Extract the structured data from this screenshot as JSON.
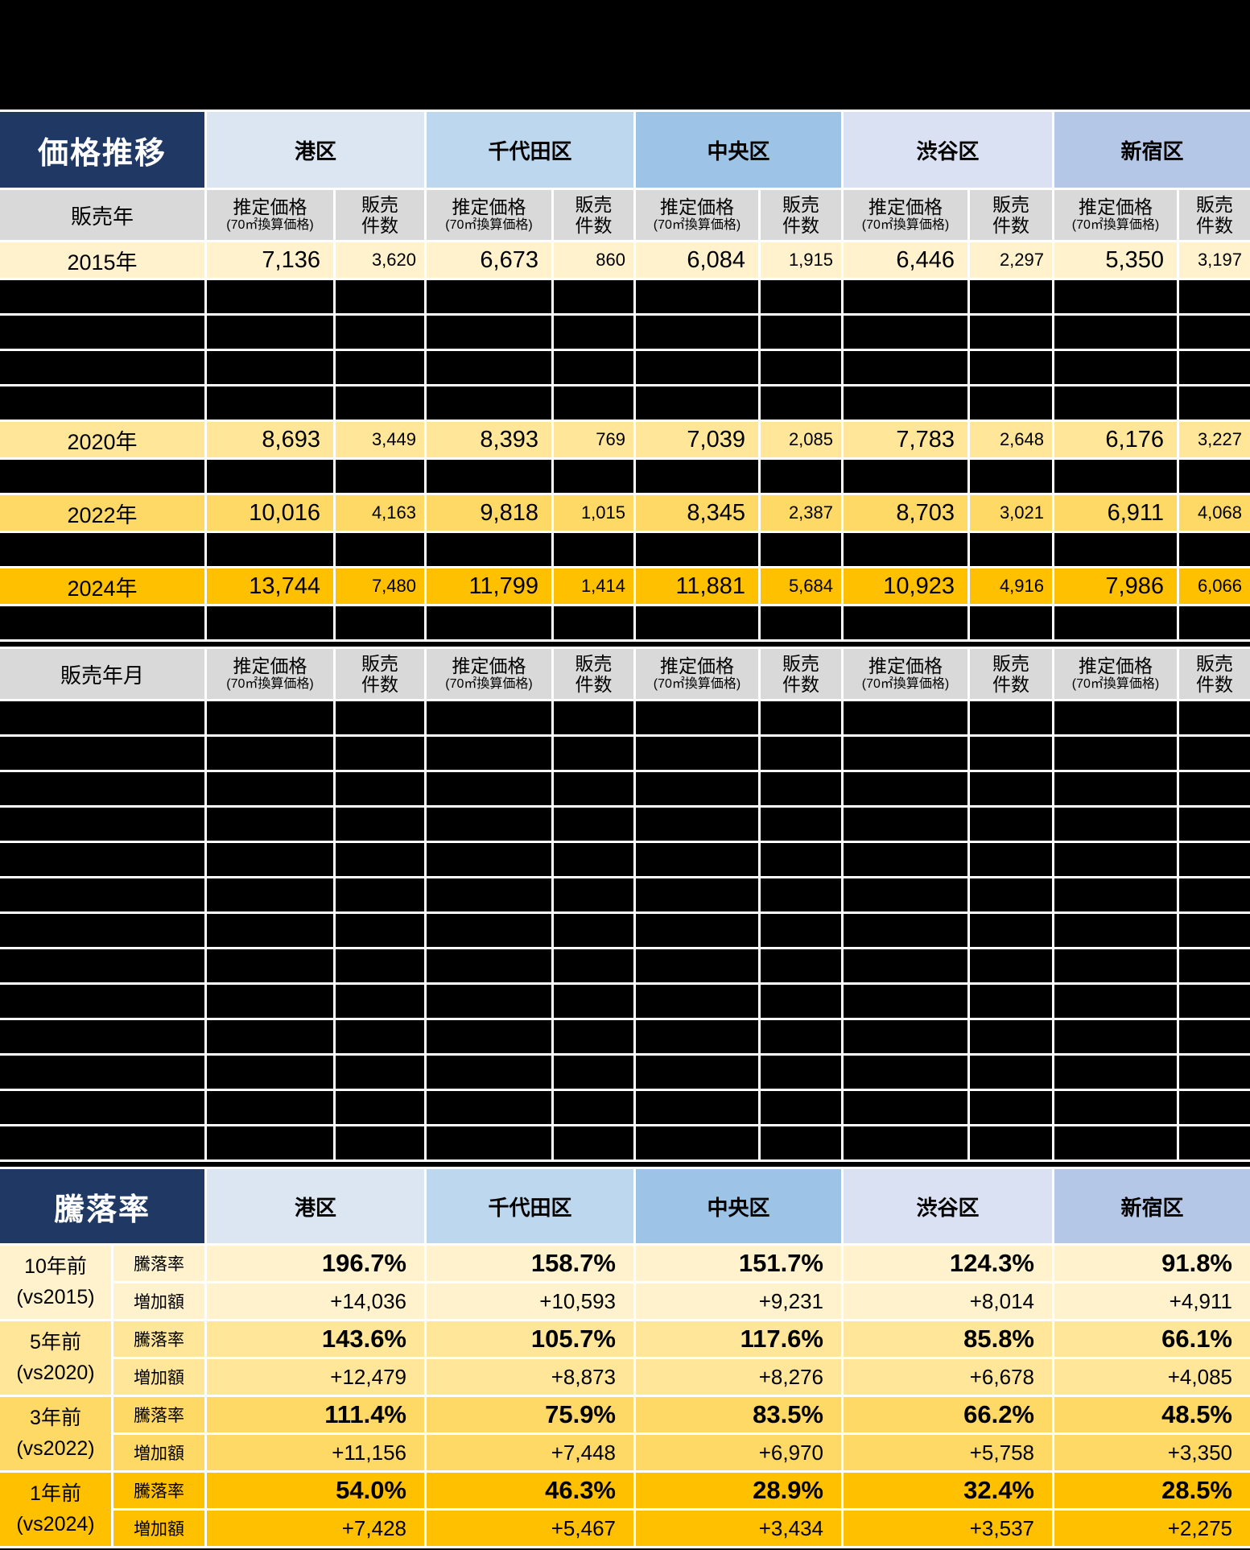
{
  "colors": {
    "header_navy": "#1f3864",
    "ward_colors": [
      "#dce6f2",
      "#bdd7ee",
      "#9dc3e6",
      "#d9e1f2",
      "#b4c7e7"
    ],
    "subheader_gray": "#d9d9d9",
    "redacted_black": "#000000",
    "row_tones": {
      "vs2015": "#fff2cc",
      "vs2020": "#ffe699",
      "vs2022": "#ffd966",
      "vs2024": "#ffc000"
    }
  },
  "wards": [
    "港区",
    "千代田区",
    "中央区",
    "渋谷区",
    "新宿区"
  ],
  "column_headers": {
    "price_line1": "推定価格",
    "price_line2": "(70㎡換算価格)",
    "count_line1": "販売",
    "count_line2": "件数"
  },
  "chart_data": [
    {
      "type": "table",
      "title": "価格推移",
      "row_label_header": "販売年",
      "wards": [
        "港区",
        "千代田区",
        "中央区",
        "渋谷区",
        "新宿区"
      ],
      "sub_columns": [
        "推定価格(70㎡換算価格)",
        "販売件数"
      ],
      "rows": [
        {
          "label": "2015年",
          "tone": "#fff2cc",
          "redacted": false,
          "cells": [
            "7,136",
            "3,620",
            "6,673",
            "860",
            "6,084",
            "1,915",
            "6,446",
            "2,297",
            "5,350",
            "3,197"
          ]
        },
        {
          "label": "",
          "tone": "#000000",
          "redacted": true,
          "cells": []
        },
        {
          "label": "",
          "tone": "#000000",
          "redacted": true,
          "cells": []
        },
        {
          "label": "",
          "tone": "#000000",
          "redacted": true,
          "cells": []
        },
        {
          "label": "",
          "tone": "#000000",
          "redacted": true,
          "cells": []
        },
        {
          "label": "2020年",
          "tone": "#ffe699",
          "redacted": false,
          "cells": [
            "8,693",
            "3,449",
            "8,393",
            "769",
            "7,039",
            "2,085",
            "7,783",
            "2,648",
            "6,176",
            "3,227"
          ]
        },
        {
          "label": "",
          "tone": "#000000",
          "redacted": true,
          "cells": []
        },
        {
          "label": "2022年",
          "tone": "#ffd966",
          "redacted": false,
          "cells": [
            "10,016",
            "4,163",
            "9,818",
            "1,015",
            "8,345",
            "2,387",
            "8,703",
            "3,021",
            "6,911",
            "4,068"
          ]
        },
        {
          "label": "",
          "tone": "#000000",
          "redacted": true,
          "cells": []
        },
        {
          "label": "2024年",
          "tone": "#ffc000",
          "redacted": false,
          "cells": [
            "13,744",
            "7,480",
            "11,799",
            "1,414",
            "11,881",
            "5,684",
            "10,923",
            "4,916",
            "7,986",
            "6,066"
          ]
        },
        {
          "label": "",
          "tone": "#000000",
          "redacted": true,
          "cells": []
        }
      ]
    },
    {
      "type": "table",
      "row_label_header": "販売年月",
      "wards": [
        "港区",
        "千代田区",
        "中央区",
        "渋谷区",
        "新宿区"
      ],
      "sub_columns": [
        "推定価格(70㎡換算価格)",
        "販売件数"
      ],
      "redacted_rows": 13
    },
    {
      "type": "table",
      "title": "騰落率",
      "wards": [
        "港区",
        "千代田区",
        "中央区",
        "渋谷区",
        "新宿区"
      ],
      "metric_labels": [
        "騰落率",
        "増加額"
      ],
      "rows": [
        {
          "period": "10年前",
          "vs": "(vs2015)",
          "tone": "#fff2cc",
          "rates": [
            "196.7%",
            "158.7%",
            "151.7%",
            "124.3%",
            "91.8%"
          ],
          "amounts": [
            "+14,036",
            "+10,593",
            "+9,231",
            "+8,014",
            "+4,911"
          ]
        },
        {
          "period": "5年前",
          "vs": "(vs2020)",
          "tone": "#ffe699",
          "rates": [
            "143.6%",
            "105.7%",
            "117.6%",
            "85.8%",
            "66.1%"
          ],
          "amounts": [
            "+12,479",
            "+8,873",
            "+8,276",
            "+6,678",
            "+4,085"
          ]
        },
        {
          "period": "3年前",
          "vs": "(vs2022)",
          "tone": "#ffd966",
          "rates": [
            "111.4%",
            "75.9%",
            "83.5%",
            "66.2%",
            "48.5%"
          ],
          "amounts": [
            "+11,156",
            "+7,448",
            "+6,970",
            "+5,758",
            "+3,350"
          ]
        },
        {
          "period": "1年前",
          "vs": "(vs2024)",
          "tone": "#ffc000",
          "rates": [
            "54.0%",
            "46.3%",
            "28.9%",
            "32.4%",
            "28.5%"
          ],
          "amounts": [
            "+7,428",
            "+5,467",
            "+3,434",
            "+3,537",
            "+2,275"
          ]
        }
      ]
    }
  ]
}
